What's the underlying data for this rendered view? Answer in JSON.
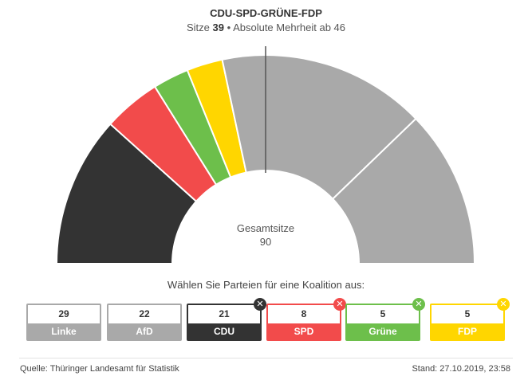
{
  "header": {
    "title": "CDU-SPD-GRÜNE-FDP",
    "subtitle_prefix": "Sitze",
    "subtitle_seats": "39",
    "subtitle_suffix": "• Absolute Mehrheit ab 46"
  },
  "center": {
    "label": "Gesamtsitze",
    "total": "90"
  },
  "prompt": "Wählen Sie Parteien für eine Koalition aus:",
  "chart_data": {
    "type": "pie",
    "variant": "parliament-semicircle",
    "title": "CDU-SPD-GRÜNE-FDP",
    "total_seats": 90,
    "majority": 46,
    "coalition_seats": 39,
    "coalition_order": [
      "FDP",
      "Grüne",
      "SPD",
      "CDU"
    ],
    "slices": [
      {
        "name": "CDU",
        "value": 21,
        "color": "#333333",
        "selected": true
      },
      {
        "name": "SPD",
        "value": 8,
        "color": "#F24B4B",
        "selected": true
      },
      {
        "name": "Grüne",
        "value": 5,
        "color": "#6DBF4B",
        "selected": true
      },
      {
        "name": "FDP",
        "value": 5,
        "color": "#FFD600",
        "selected": true
      },
      {
        "name": "Linke",
        "value": 29,
        "color": "#A9A9A9",
        "selected": false
      },
      {
        "name": "AfD",
        "value": 22,
        "color": "#A9A9A9",
        "selected": false
      }
    ]
  },
  "parties": [
    {
      "name": "Linke",
      "seats": "29",
      "color": "#A9A9A9",
      "selected": false
    },
    {
      "name": "AfD",
      "seats": "22",
      "color": "#A9A9A9",
      "selected": false
    },
    {
      "name": "CDU",
      "seats": "21",
      "color": "#333333",
      "selected": true,
      "badge_icon": "close-icon"
    },
    {
      "name": "SPD",
      "seats": "8",
      "color": "#F24B4B",
      "selected": true,
      "badge_icon": "close-icon"
    },
    {
      "name": "Grüne",
      "seats": "5",
      "color": "#6DBF4B",
      "selected": true,
      "badge_icon": "close-icon"
    },
    {
      "name": "FDP",
      "seats": "5",
      "color": "#FFD600",
      "selected": true,
      "badge_icon": "close-icon"
    }
  ],
  "footer": {
    "source": "Quelle: Thüringer Landesamt für Statistik",
    "stand": "Stand: 27.10.2019, 23:58"
  }
}
